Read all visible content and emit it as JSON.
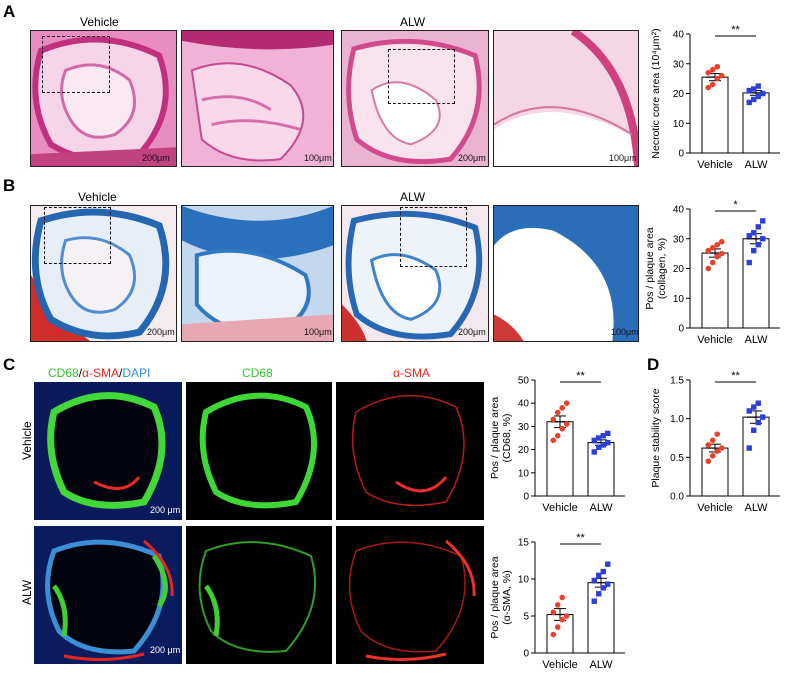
{
  "panels": {
    "A": {
      "label": "A",
      "left_title": "Vehicle",
      "right_title": "ALW",
      "scale_200": "200μm",
      "scale_100": "100μm",
      "scale_200_b": "200μm",
      "scale_100_b": "100μm"
    },
    "B": {
      "label": "B",
      "left_title": "Vehicle",
      "right_title": "ALW",
      "scale_200": "200μm",
      "scale_100": "100μm",
      "scale_200_b": "200μm",
      "scale_100_b": "100μm"
    },
    "C": {
      "label": "C",
      "merge_label": "CD68/α-SMA/DAPI",
      "cd68_label": "CD68",
      "asma_label": "α-SMA",
      "row_vehicle": "Vehicle",
      "row_alw": "ALW",
      "scale_top": "200 μm",
      "scale_bottom": "200 μm"
    },
    "D": {
      "label": "D"
    }
  },
  "colors": {
    "vehicle_dots": "#e8412c",
    "alw_dots": "#2c3fd9",
    "he_pink": "#d94f9e",
    "masson_blue": "#2a6fb8",
    "cd68_green": "#33d62a",
    "asma_red": "#e8261e"
  },
  "chart_data": [
    {
      "id": "necrotic",
      "type": "bar",
      "categories": [
        "Vehicle",
        "ALW"
      ],
      "ylabel": "Necrotic core area (10⁴μm²)",
      "ylim": [
        0,
        40
      ],
      "yticks": [
        0,
        10,
        20,
        30,
        40
      ],
      "means": [
        25.5,
        20.2
      ],
      "sem": [
        1.2,
        0.8
      ],
      "significance": "**",
      "points": [
        [
          22,
          23,
          25,
          26,
          27,
          28,
          29
        ],
        [
          17,
          18,
          19,
          20,
          21,
          21.5,
          22.5
        ]
      ]
    },
    {
      "id": "collagen",
      "type": "bar",
      "categories": [
        "Vehicle",
        "ALW"
      ],
      "ylabel": "Pos / plaque area\n(collagen, %)",
      "ylim": [
        0,
        40
      ],
      "yticks": [
        0,
        10,
        20,
        30,
        40
      ],
      "means": [
        25.2,
        30.0
      ],
      "sem": [
        1.4,
        1.7
      ],
      "significance": "*",
      "points": [
        [
          20,
          22,
          24,
          25,
          26,
          27,
          28,
          29
        ],
        [
          22,
          26,
          28,
          30,
          31,
          32,
          34,
          36
        ]
      ]
    },
    {
      "id": "cd68",
      "type": "bar",
      "categories": [
        "Vehicle",
        "ALW"
      ],
      "ylabel": "Pos / plaque area\n(CD68, %)",
      "ylim": [
        0,
        50
      ],
      "yticks": [
        0,
        10,
        20,
        30,
        40,
        50
      ],
      "means": [
        32.0,
        23.0
      ],
      "sem": [
        2.5,
        1.2
      ],
      "significance": "**",
      "points": [
        [
          24,
          26,
          29,
          31,
          33,
          36,
          38,
          40
        ],
        [
          19,
          21,
          22,
          23,
          24,
          25,
          26,
          27
        ]
      ]
    },
    {
      "id": "asma",
      "type": "bar",
      "categories": [
        "Vehicle",
        "ALW"
      ],
      "ylabel": "Pos / plaque area\n(α-SMA, %)",
      "ylim": [
        0,
        15
      ],
      "yticks": [
        0,
        5,
        10,
        15
      ],
      "means": [
        5.2,
        9.5
      ],
      "sem": [
        0.8,
        0.6
      ],
      "significance": "**",
      "points": [
        [
          2.5,
          3.5,
          4.5,
          5,
          5.5,
          6.5,
          7.5
        ],
        [
          7,
          8,
          8.8,
          9.3,
          9.8,
          10.5,
          11,
          12
        ]
      ]
    },
    {
      "id": "stability",
      "type": "bar",
      "categories": [
        "Vehicle",
        "ALW"
      ],
      "ylabel": "Plaque stability score",
      "ylim": [
        0,
        1.5
      ],
      "yticks": [
        0,
        0.5,
        1.0,
        1.5
      ],
      "yticklabels": [
        "0.0",
        "0.5",
        "1.0",
        "1.5"
      ],
      "means": [
        0.62,
        1.02
      ],
      "sem": [
        0.05,
        0.08
      ],
      "significance": "**",
      "points": [
        [
          0.45,
          0.52,
          0.58,
          0.62,
          0.66,
          0.72,
          0.8
        ],
        [
          0.62,
          0.85,
          0.95,
          1.02,
          1.1,
          1.15,
          1.2
        ]
      ]
    }
  ]
}
